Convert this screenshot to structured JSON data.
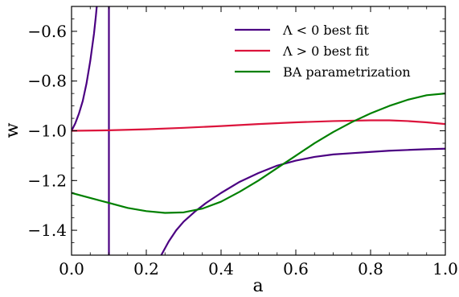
{
  "chart_data": {
    "type": "line",
    "xlabel": "a",
    "ylabel": "w",
    "xlim": [
      0.0,
      1.0
    ],
    "ylim": [
      -1.5,
      -0.5
    ],
    "grid": false,
    "legend_position": "top-right",
    "x_ticks": [
      {
        "value": 0.0,
        "label": "0.0"
      },
      {
        "value": 0.2,
        "label": "0.2"
      },
      {
        "value": 0.4,
        "label": "0.4"
      },
      {
        "value": 0.6,
        "label": "0.6"
      },
      {
        "value": 0.8,
        "label": "0.8"
      },
      {
        "value": 1.0,
        "label": "1.0"
      }
    ],
    "y_ticks": [
      {
        "value": -0.6,
        "label": "−0.6"
      },
      {
        "value": -0.8,
        "label": "−0.8"
      },
      {
        "value": -1.0,
        "label": "−1.0"
      },
      {
        "value": -1.2,
        "label": "−1.2"
      },
      {
        "value": -1.4,
        "label": "−1.4"
      }
    ],
    "series": [
      {
        "name": "Λ < 0 best fit",
        "color": "#4b0082",
        "segments": [
          {
            "x": [
              0.0,
              0.01,
              0.02,
              0.03,
              0.04,
              0.05,
              0.06,
              0.065,
              0.07
            ],
            "y": [
              -1.0,
              -0.97,
              -0.93,
              -0.88,
              -0.81,
              -0.72,
              -0.61,
              -0.54,
              -0.46
            ]
          },
          {
            "x": [
              0.1,
              0.1
            ],
            "y": [
              -0.5,
              -1.5
            ]
          },
          {
            "x": [
              0.24,
              0.26,
              0.28,
              0.3,
              0.33,
              0.36,
              0.4,
              0.45,
              0.5,
              0.55,
              0.6,
              0.65,
              0.7,
              0.75,
              0.8,
              0.85,
              0.9,
              0.95,
              1.0
            ],
            "y": [
              -1.5,
              -1.445,
              -1.4,
              -1.365,
              -1.325,
              -1.29,
              -1.25,
              -1.205,
              -1.17,
              -1.14,
              -1.12,
              -1.105,
              -1.095,
              -1.09,
              -1.085,
              -1.08,
              -1.077,
              -1.074,
              -1.072
            ]
          }
        ]
      },
      {
        "name": "Λ > 0 best fit",
        "color": "#dc143c",
        "segments": [
          {
            "x": [
              0.0,
              0.1,
              0.2,
              0.3,
              0.4,
              0.5,
              0.6,
              0.7,
              0.8,
              0.85,
              0.9,
              0.95,
              1.0
            ],
            "y": [
              -1.0,
              -0.998,
              -0.994,
              -0.988,
              -0.981,
              -0.973,
              -0.966,
              -0.961,
              -0.958,
              -0.958,
              -0.961,
              -0.966,
              -0.973
            ]
          }
        ]
      },
      {
        "name": "BA parametrization",
        "color": "#008000",
        "segments": [
          {
            "x": [
              0.0,
              0.05,
              0.1,
              0.15,
              0.2,
              0.25,
              0.3,
              0.35,
              0.4,
              0.45,
              0.5,
              0.55,
              0.6,
              0.65,
              0.7,
              0.75,
              0.8,
              0.85,
              0.9,
              0.95,
              1.0
            ],
            "y": [
              -1.25,
              -1.27,
              -1.29,
              -1.31,
              -1.323,
              -1.33,
              -1.328,
              -1.313,
              -1.285,
              -1.245,
              -1.2,
              -1.15,
              -1.1,
              -1.05,
              -1.005,
              -0.965,
              -0.93,
              -0.9,
              -0.875,
              -0.857,
              -0.85
            ]
          }
        ]
      }
    ]
  }
}
